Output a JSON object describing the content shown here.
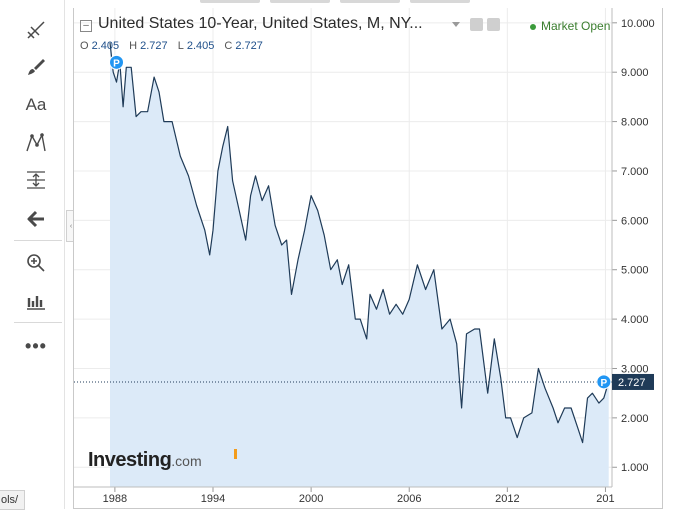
{
  "toolbar": {
    "tools": [
      {
        "name": "line-tools-icon"
      },
      {
        "name": "brush-icon"
      },
      {
        "name": "text-tool-icon",
        "label": "Aa"
      },
      {
        "name": "pattern-tool-icon"
      },
      {
        "name": "measure-tool-icon"
      },
      {
        "name": "arrow-left-icon"
      },
      {
        "name": "zoom-in-icon"
      },
      {
        "name": "indicators-icon"
      },
      {
        "name": "more-icon",
        "label": "•••"
      }
    ]
  },
  "status_tab": {
    "label": "ols/"
  },
  "header": {
    "title": "United States 10-Year, United States, M, NY...",
    "market_status": "Market Open",
    "ohlc": {
      "O": "2.405",
      "H": "2.727",
      "L": "2.405",
      "C": "2.727"
    }
  },
  "watermark": {
    "brand": "Investing",
    "suffix": ".com"
  },
  "colors": {
    "line": "#1f3b58",
    "area": "#dceaf8",
    "accent": "#2196f3",
    "last_label_bg": "#1f3b58",
    "market_green": "#3a7d2e"
  },
  "chart_data": {
    "type": "area",
    "title": "United States 10-Year, United States, M, NY...",
    "y_axis_position": "right",
    "ylim": [
      0.6,
      10.3
    ],
    "y_ticks": [
      "10.000",
      "9.000",
      "8.000",
      "7.000",
      "6.000",
      "5.000",
      "4.000",
      "3.000",
      "2.000",
      "1.000"
    ],
    "xlim": [
      1985.5,
      2018.4
    ],
    "x_ticks": [
      "1988",
      "1994",
      "2000",
      "2006",
      "2012",
      "201"
    ],
    "last_value": "2.727",
    "markers": [
      {
        "label": "P",
        "x": 1988.1,
        "y": 9.2
      },
      {
        "label": "P",
        "x": 2017.9,
        "y": 2.73
      }
    ],
    "series": [
      {
        "x": [
          1987.7,
          1987.9,
          1988.1,
          1988.3,
          1988.5,
          1988.7,
          1989.0,
          1989.3,
          1989.6,
          1990.0,
          1990.4,
          1990.7,
          1991.0,
          1991.5,
          1992.0,
          1992.5,
          1993.0,
          1993.5,
          1993.8,
          1994.0,
          1994.3,
          1994.6,
          1994.9,
          1995.2,
          1995.6,
          1996.0,
          1996.3,
          1996.6,
          1997.0,
          1997.4,
          1997.8,
          1998.2,
          1998.5,
          1998.8,
          1999.2,
          1999.6,
          2000.0,
          2000.4,
          2000.8,
          2001.2,
          2001.6,
          2001.9,
          2002.3,
          2002.7,
          2003.0,
          2003.4,
          2003.6,
          2004.0,
          2004.4,
          2004.8,
          2005.2,
          2005.6,
          2006.0,
          2006.5,
          2007.0,
          2007.5,
          2008.0,
          2008.5,
          2008.9,
          2009.2,
          2009.5,
          2010.0,
          2010.3,
          2010.8,
          2011.2,
          2011.6,
          2011.9,
          2012.2,
          2012.6,
          2013.0,
          2013.5,
          2013.9,
          2014.3,
          2014.8,
          2015.1,
          2015.5,
          2015.9,
          2016.3,
          2016.6,
          2016.9,
          2017.2,
          2017.6,
          2017.9,
          2018.2
        ],
        "y": [
          9.6,
          9.0,
          8.8,
          9.2,
          8.3,
          9.1,
          9.1,
          8.1,
          8.2,
          8.2,
          8.9,
          8.6,
          8.0,
          8.0,
          7.3,
          6.9,
          6.3,
          5.8,
          5.3,
          5.8,
          7.0,
          7.5,
          7.9,
          6.8,
          6.2,
          5.6,
          6.5,
          6.9,
          6.4,
          6.7,
          5.9,
          5.5,
          5.6,
          4.5,
          5.2,
          5.8,
          6.5,
          6.2,
          5.7,
          5.0,
          5.2,
          4.7,
          5.1,
          4.0,
          4.0,
          3.6,
          4.5,
          4.2,
          4.6,
          4.1,
          4.3,
          4.1,
          4.4,
          5.1,
          4.6,
          5.0,
          3.8,
          4.0,
          3.5,
          2.2,
          3.7,
          3.8,
          3.8,
          2.5,
          3.6,
          2.8,
          2.0,
          2.0,
          1.6,
          2.0,
          2.1,
          3.0,
          2.6,
          2.2,
          1.9,
          2.2,
          2.2,
          1.8,
          1.5,
          2.4,
          2.5,
          2.3,
          2.4,
          2.73
        ]
      }
    ]
  }
}
